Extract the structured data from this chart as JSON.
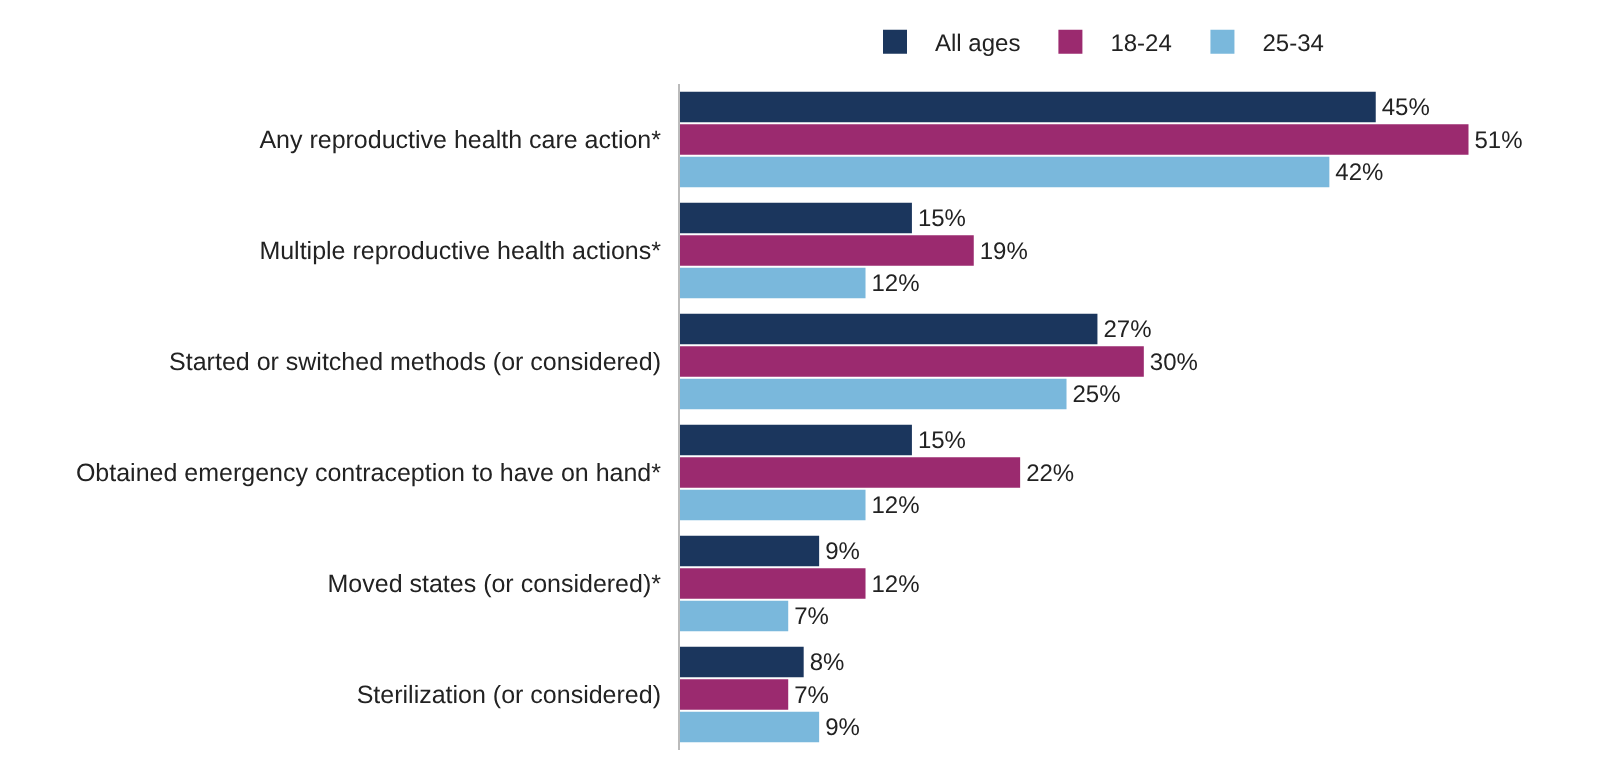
{
  "chart_data": {
    "type": "bar",
    "orientation": "horizontal",
    "legend": "top",
    "categories": [
      "Any reproductive health care action*",
      "Multiple reproductive health actions*",
      "Started or switched methods (or considered)",
      "Obtained emergency contraception to have on hand*",
      "Moved states (or considered)*",
      "Sterilization (or considered)"
    ],
    "series": [
      {
        "name": "All ages",
        "color": "#1b365d",
        "values": [
          45,
          15,
          27,
          15,
          9,
          8
        ],
        "value_labels": [
          "45%",
          "15%",
          "27%",
          "15%",
          "9%",
          "8%"
        ]
      },
      {
        "name": "18-24",
        "color": "#9b2a6f",
        "values": [
          51,
          19,
          30,
          22,
          12,
          7
        ],
        "value_labels": [
          "51%",
          "19%",
          "30%",
          "22%",
          "12%",
          "7%"
        ]
      },
      {
        "name": "25-34",
        "color": "#7ab8dc",
        "values": [
          42,
          12,
          25,
          12,
          7,
          9
        ],
        "value_labels": [
          "42%",
          "12%",
          "25%",
          "12%",
          "7%",
          "9%"
        ]
      }
    ]
  }
}
